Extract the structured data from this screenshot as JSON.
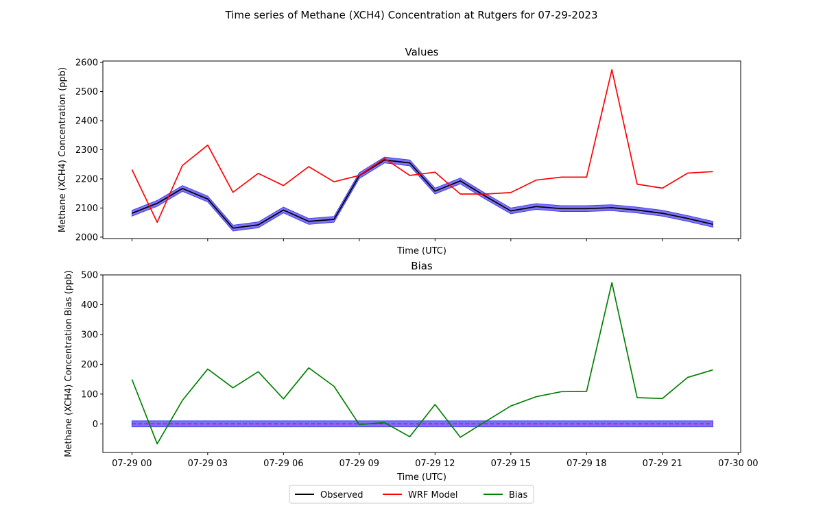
{
  "figure": {
    "suptitle": "Time series of Methane (XCH4) Concentration at Rutgers for 07-29-2023"
  },
  "chart_data": [
    {
      "type": "line",
      "title": "Values",
      "xlabel": "Time (UTC)",
      "ylabel": "Methane (XCH4) Concentration (ppb)",
      "x_ticks": [
        "07-29 00",
        "07-29 03",
        "07-29 06",
        "07-29 09",
        "07-29 12",
        "07-29 15",
        "07-29 18",
        "07-29 21",
        "07-30 00"
      ],
      "x_tick_labels_visible": false,
      "xlim": [
        "2023-07-29 00:00",
        "2023-07-30 00:00"
      ],
      "ylim": [
        2000,
        2600
      ],
      "y_ticks": [
        "2000",
        "2100",
        "2200",
        "2300",
        "2400",
        "2500",
        "2600"
      ],
      "x": [
        "07-29 00",
        "07-29 01",
        "07-29 02",
        "07-29 03",
        "07-29 04",
        "07-29 05",
        "07-29 06",
        "07-29 07",
        "07-29 08",
        "07-29 09",
        "07-29 10",
        "07-29 11",
        "07-29 12",
        "07-29 13",
        "07-29 14",
        "07-29 15",
        "07-29 16",
        "07-29 17",
        "07-29 18",
        "07-29 19",
        "07-29 20",
        "07-29 21",
        "07-29 22",
        "07-29 23"
      ],
      "series": [
        {
          "name": "Observed",
          "color": "#000000",
          "values": [
            2082,
            2116,
            2167,
            2131,
            2031,
            2042,
            2093,
            2054,
            2061,
            2211,
            2265,
            2255,
            2158,
            2193,
            2140,
            2090,
            2105,
            2098,
            2098,
            2101,
            2093,
            2082,
            2064,
            2044
          ]
        },
        {
          "name": "WRF Model",
          "color": "#ff0000",
          "values": [
            2232,
            2051,
            2246,
            2316,
            2154,
            2219,
            2177,
            2242,
            2190,
            2212,
            2270,
            2212,
            2223,
            2148,
            2148,
            2153,
            2196,
            2206,
            2206,
            2575,
            2182,
            2168,
            2220,
            2225
          ]
        }
      ],
      "band": {
        "color": "#6a5af0",
        "half_width": 10,
        "applies_to": "Observed"
      }
    },
    {
      "type": "line",
      "title": "Bias",
      "xlabel": "Time (UTC)",
      "ylabel": "Methane (XCH4) Concentration Bias (ppb)",
      "x_ticks": [
        "07-29 00",
        "07-29 03",
        "07-29 06",
        "07-29 09",
        "07-29 12",
        "07-29 15",
        "07-29 18",
        "07-29 21",
        "07-30 00"
      ],
      "xlim": [
        "2023-07-29 00:00",
        "2023-07-30 00:00"
      ],
      "ylim": [
        -100,
        500
      ],
      "y_ticks": [
        "0",
        "100",
        "200",
        "300",
        "400",
        "500"
      ],
      "x": [
        "07-29 00",
        "07-29 01",
        "07-29 02",
        "07-29 03",
        "07-29 04",
        "07-29 05",
        "07-29 06",
        "07-29 07",
        "07-29 08",
        "07-29 09",
        "07-29 10",
        "07-29 11",
        "07-29 12",
        "07-29 13",
        "07-29 14",
        "07-29 15",
        "07-29 16",
        "07-29 17",
        "07-29 18",
        "07-29 19",
        "07-29 20",
        "07-29 21",
        "07-29 22",
        "07-29 23"
      ],
      "series": [
        {
          "name": "Bias",
          "color": "#008000",
          "values": [
            149,
            -67,
            79,
            184,
            121,
            175,
            84,
            188,
            126,
            -2,
            4,
            -43,
            65,
            -45,
            8,
            60,
            91,
            108,
            109,
            474,
            88,
            85,
            156,
            181
          ]
        }
      ],
      "zero_line": {
        "value": 0,
        "color": "#cc00cc",
        "style": "dashed"
      },
      "band": {
        "color": "#6a5af0",
        "half_width": 10,
        "center": 0
      }
    }
  ],
  "legend": {
    "placement": "bottom-center",
    "entries": [
      {
        "label": "Observed",
        "color": "#000000"
      },
      {
        "label": "WRF Model",
        "color": "#ff0000"
      },
      {
        "label": "Bias",
        "color": "#008000"
      }
    ]
  }
}
